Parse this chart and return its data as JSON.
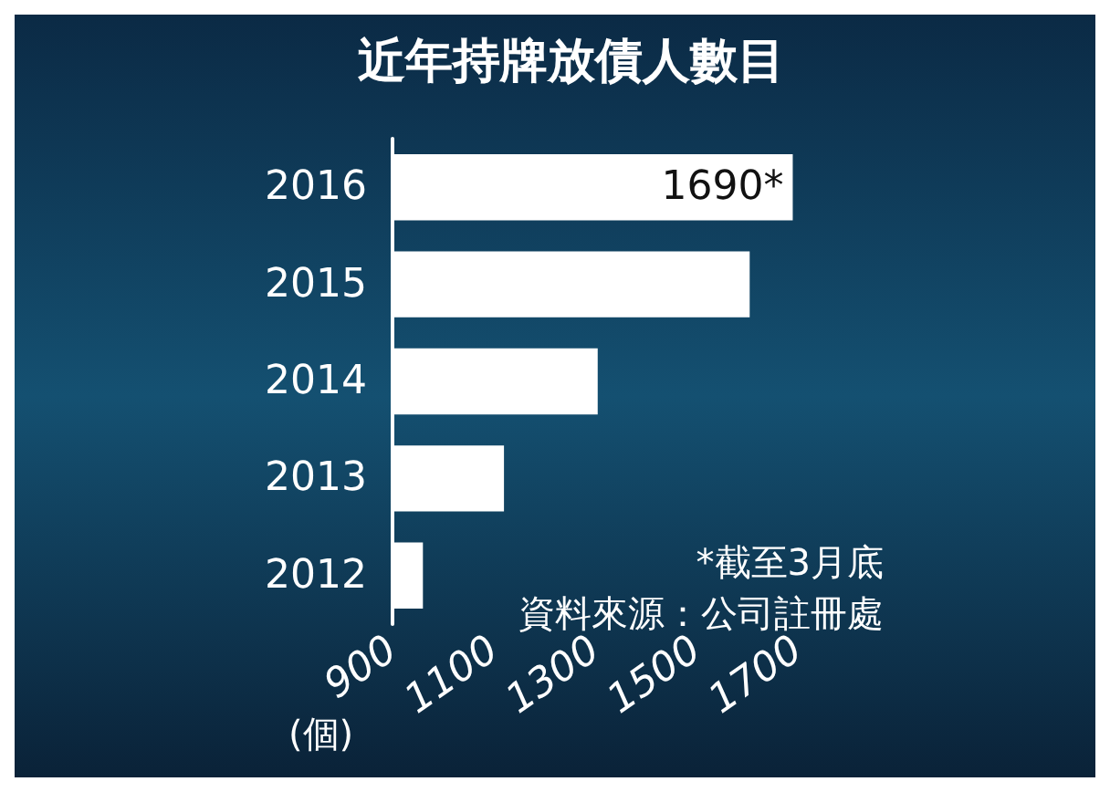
{
  "chart_data": {
    "type": "bar",
    "orientation": "horizontal",
    "title": "近年持牌放債人數目",
    "xlabel": "(個)",
    "categories": [
      "2016",
      "2015",
      "2014",
      "2013",
      "2012"
    ],
    "series": [
      {
        "color": "#ffffff",
        "values": [
          1690,
          1605,
          1305,
          1120,
          960
        ],
        "value_labels": [
          "1690*",
          null,
          null,
          null,
          null
        ]
      }
    ],
    "xlim": [
      900,
      1700
    ],
    "xticks": [
      900,
      1100,
      1300,
      1500,
      1700
    ],
    "annotations": [
      "*截至3月底",
      "資料來源：公司註冊處"
    ],
    "grid": false
  }
}
